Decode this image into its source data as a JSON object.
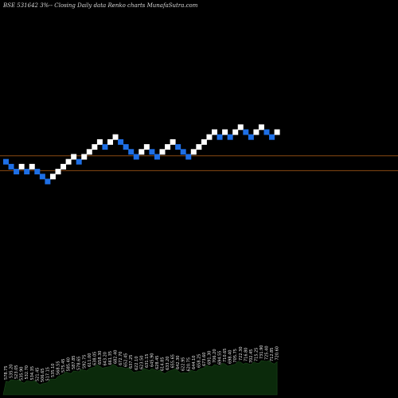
{
  "title": "BSE 531642  3%-- Closing Daily data Renko charts MunafaSutra.com",
  "colors": {
    "background": "#000000",
    "up_brick": "#ffffff",
    "down_brick": "#1e6fe6",
    "support_line": "#8a4a12",
    "volume_fill": "#0b2a0b"
  },
  "chart_data": {
    "type": "renko",
    "title": "BSE 531642  3%-- Closing Daily data Renko charts MunafaSutra.com",
    "brick_size_percent": 3,
    "bricks": [
      {
        "dir": "down",
        "level": 9
      },
      {
        "dir": "down",
        "level": 8
      },
      {
        "dir": "down",
        "level": 7
      },
      {
        "dir": "up",
        "level": 8
      },
      {
        "dir": "down",
        "level": 7
      },
      {
        "dir": "up",
        "level": 8
      },
      {
        "dir": "down",
        "level": 7
      },
      {
        "dir": "down",
        "level": 6
      },
      {
        "dir": "down",
        "level": 5
      },
      {
        "dir": "up",
        "level": 6
      },
      {
        "dir": "up",
        "level": 7
      },
      {
        "dir": "up",
        "level": 8
      },
      {
        "dir": "up",
        "level": 9
      },
      {
        "dir": "up",
        "level": 10
      },
      {
        "dir": "down",
        "level": 9
      },
      {
        "dir": "up",
        "level": 10
      },
      {
        "dir": "up",
        "level": 11
      },
      {
        "dir": "up",
        "level": 12
      },
      {
        "dir": "up",
        "level": 13
      },
      {
        "dir": "down",
        "level": 12
      },
      {
        "dir": "up",
        "level": 13
      },
      {
        "dir": "up",
        "level": 14
      },
      {
        "dir": "down",
        "level": 13
      },
      {
        "dir": "down",
        "level": 12
      },
      {
        "dir": "down",
        "level": 11
      },
      {
        "dir": "down",
        "level": 10
      },
      {
        "dir": "up",
        "level": 11
      },
      {
        "dir": "up",
        "level": 12
      },
      {
        "dir": "down",
        "level": 11
      },
      {
        "dir": "down",
        "level": 10
      },
      {
        "dir": "up",
        "level": 11
      },
      {
        "dir": "up",
        "level": 12
      },
      {
        "dir": "up",
        "level": 13
      },
      {
        "dir": "down",
        "level": 12
      },
      {
        "dir": "down",
        "level": 11
      },
      {
        "dir": "down",
        "level": 10
      },
      {
        "dir": "up",
        "level": 11
      },
      {
        "dir": "up",
        "level": 12
      },
      {
        "dir": "up",
        "level": 13
      },
      {
        "dir": "up",
        "level": 14
      },
      {
        "dir": "up",
        "level": 15
      },
      {
        "dir": "down",
        "level": 14
      },
      {
        "dir": "up",
        "level": 15
      },
      {
        "dir": "down",
        "level": 14
      },
      {
        "dir": "up",
        "level": 15
      },
      {
        "dir": "up",
        "level": 16
      },
      {
        "dir": "down",
        "level": 15
      },
      {
        "dir": "down",
        "level": 14
      },
      {
        "dir": "up",
        "level": 15
      },
      {
        "dir": "up",
        "level": 16
      },
      {
        "dir": "down",
        "level": 15
      },
      {
        "dir": "down",
        "level": 14
      },
      {
        "dir": "up",
        "level": 15
      }
    ],
    "support_lines": [
      {
        "level": 10.2
      },
      {
        "level": 7.2
      }
    ],
    "volume_labels": [
      "578.75",
      "535.20",
      "523.05",
      "535.90",
      "532.70",
      "534.35",
      "521.45",
      "506.65",
      "517.15",
      "535.10",
      "568.55",
      "575.45",
      "585.40",
      "587.85",
      "578.65",
      "592.75",
      "611.00",
      "638.05",
      "658.30",
      "643.20",
      "661.35",
      "682.40",
      "672.70",
      "652.45",
      "637.25",
      "622.10",
      "623.50",
      "631.15",
      "645.90",
      "628.45",
      "614.85",
      "633.20",
      "655.65",
      "642.30",
      "622.95",
      "620.75",
      "644.10",
      "658.25",
      "673.60",
      "691.30",
      "706.20",
      "694.55",
      "710.65",
      "698.40",
      "705.75",
      "722.30",
      "716.80",
      "702.45",
      "715.25",
      "731.90",
      "725.40",
      "712.85",
      "720.60"
    ],
    "volume": [
      0.34,
      0.38,
      0.36,
      0.32,
      0.35,
      0.33,
      0.3,
      0.28,
      0.31,
      0.4,
      0.46,
      0.52,
      0.55,
      0.6,
      0.58,
      0.62,
      0.66,
      0.7,
      0.72,
      0.69,
      0.71,
      0.74,
      0.7,
      0.66,
      0.62,
      0.58,
      0.6,
      0.64,
      0.66,
      0.6,
      0.56,
      0.58,
      0.63,
      0.6,
      0.56,
      0.55,
      0.6,
      0.64,
      0.68,
      0.72,
      0.76,
      0.72,
      0.78,
      0.74,
      0.77,
      0.82,
      0.8,
      0.76,
      0.8,
      0.86,
      0.84,
      0.8,
      0.83
    ]
  }
}
